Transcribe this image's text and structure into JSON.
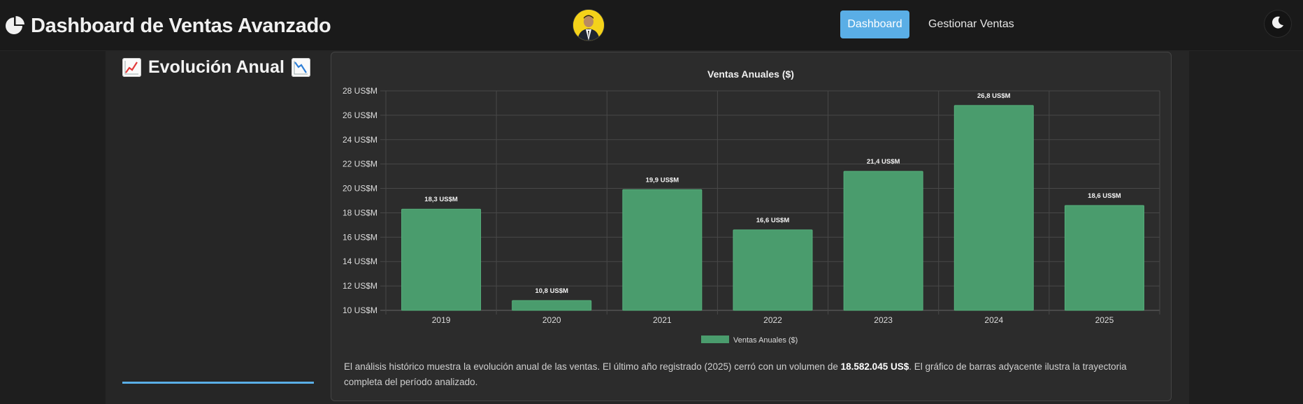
{
  "app": {
    "title": "Dashboard de Ventas Avanzado"
  },
  "nav": {
    "dashboard": "Dashboard",
    "manage_sales": "Gestionar Ventas"
  },
  "section": {
    "title": "Evolución Anual"
  },
  "description": {
    "prefix": "El análisis histórico muestra la evolución anual de las ventas. El último año registrado (2025) cerró con un volumen de ",
    "amount": "18.582.045 US$",
    "suffix": ". El gráfico de barras adyacente ilustra la trayectoria completa del período analizado."
  },
  "colors": {
    "accent": "#5aaee6",
    "bar": "#4a9c6d"
  },
  "icons": {
    "brand": "pie-chart-icon",
    "theme": "moon-icon",
    "left_emoji": "chart-increasing-emoji",
    "right_emoji": "chart-decreasing-emoji"
  },
  "chart_data": {
    "type": "bar",
    "title": "Ventas Anuales ($)",
    "categories": [
      "2019",
      "2020",
      "2021",
      "2022",
      "2023",
      "2024",
      "2025"
    ],
    "series": [
      {
        "name": "Ventas Anuales ($)",
        "values": [
          18.3,
          10.8,
          19.9,
          16.6,
          21.4,
          26.8,
          18.6
        ],
        "labels": [
          "18,3 US$M",
          "10,8 US$M",
          "19,9 US$M",
          "16,6 US$M",
          "21,4 US$M",
          "26,8 US$M",
          "18,6 US$M"
        ]
      }
    ],
    "ylim": [
      10,
      28
    ],
    "yticks": [
      "10 US$M",
      "12 US$M",
      "14 US$M",
      "16 US$M",
      "18 US$M",
      "20 US$M",
      "22 US$M",
      "24 US$M",
      "26 US$M",
      "28 US$M"
    ],
    "ytick_values": [
      10,
      12,
      14,
      16,
      18,
      20,
      22,
      24,
      26,
      28
    ],
    "grid": true,
    "legend": "bottom"
  }
}
